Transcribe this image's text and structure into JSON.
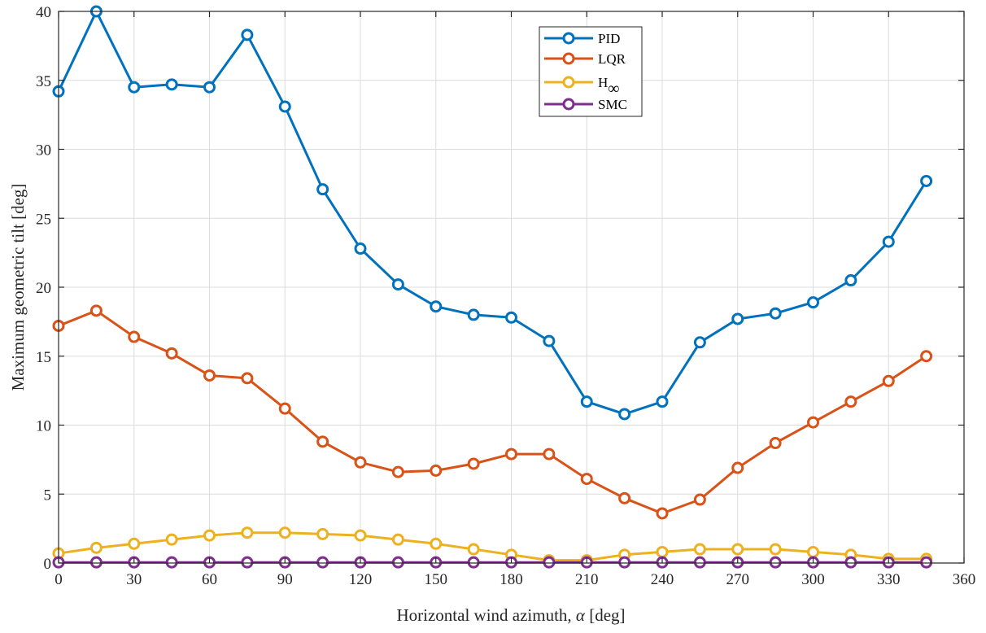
{
  "chart_data": {
    "type": "line",
    "xlabel_main": "Horizontal wind azimuth, ",
    "xlabel_symbol": "α",
    "xlabel_unit": " [deg]",
    "ylabel": "Maximum geometric tilt [deg]",
    "xlim": [
      0,
      360
    ],
    "ylim": [
      0,
      40
    ],
    "xticks": [
      0,
      30,
      60,
      90,
      120,
      150,
      180,
      210,
      240,
      270,
      300,
      330,
      360
    ],
    "yticks": [
      0,
      5,
      10,
      15,
      20,
      25,
      30,
      35,
      40
    ],
    "grid": true,
    "legend_position": "top-center",
    "x": [
      0,
      15,
      30,
      45,
      60,
      75,
      90,
      105,
      120,
      135,
      150,
      165,
      180,
      195,
      210,
      225,
      240,
      255,
      270,
      285,
      300,
      315,
      330,
      345
    ],
    "series": [
      {
        "name": "PID",
        "color": "#0072BD",
        "values": [
          34.2,
          40.0,
          34.5,
          34.7,
          34.5,
          38.3,
          33.1,
          27.1,
          22.8,
          20.2,
          18.6,
          18.0,
          17.8,
          16.1,
          11.7,
          10.8,
          11.7,
          16.0,
          17.7,
          18.1,
          18.9,
          20.5,
          23.3,
          27.7
        ]
      },
      {
        "name": "LQR",
        "color": "#D95319",
        "values": [
          17.2,
          18.3,
          16.4,
          15.2,
          13.6,
          13.4,
          11.2,
          8.8,
          7.3,
          6.6,
          6.7,
          7.2,
          7.9,
          7.9,
          6.1,
          4.7,
          3.6,
          4.6,
          6.9,
          8.7,
          10.2,
          11.7,
          13.2,
          15.0
        ]
      },
      {
        "name": "H",
        "name_sub": "∞",
        "color": "#EDB120",
        "values": [
          0.7,
          1.1,
          1.4,
          1.7,
          2.0,
          2.2,
          2.2,
          2.1,
          2.0,
          1.7,
          1.4,
          1.0,
          0.6,
          0.2,
          0.2,
          0.6,
          0.8,
          1.0,
          1.0,
          1.0,
          0.8,
          0.6,
          0.3,
          0.3
        ]
      },
      {
        "name": "SMC",
        "color": "#7E2F8E",
        "values": [
          0.05,
          0.05,
          0.05,
          0.05,
          0.05,
          0.05,
          0.05,
          0.05,
          0.05,
          0.05,
          0.05,
          0.05,
          0.05,
          0.05,
          0.05,
          0.05,
          0.05,
          0.05,
          0.05,
          0.05,
          0.05,
          0.05,
          0.05,
          0.05
        ]
      }
    ]
  }
}
